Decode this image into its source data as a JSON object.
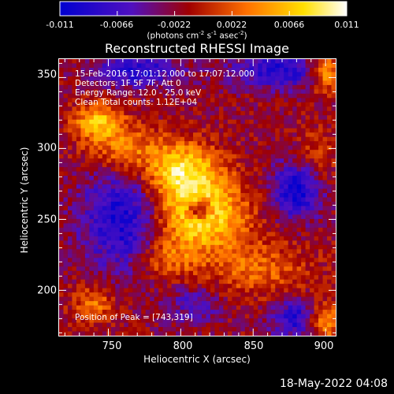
{
  "colorbar": {
    "ticks": [
      "-0.011",
      "-0.0066",
      "-0.0022",
      "0.0022",
      "0.0066",
      "0.011"
    ],
    "units_main": "(photons cm",
    "units_exp1": "-2",
    "units_mid": " s",
    "units_exp2": "-1",
    "units_tail": " asec",
    "units_exp3": "-2",
    "units_close": ")"
  },
  "annotations": {
    "time": "15-Feb-2016 17:01:12.000 to 17:07:12.000",
    "detectors": "Detectors: 1F 5F 7F, Att 0",
    "energy": "Energy Range: 12.0 - 25.0 keV",
    "clean": "Clean    Total counts: 1.12E+04",
    "peak": "Position of Peak = [743,319]"
  },
  "footer_date": "18-May-2022 04:08",
  "chart_data": {
    "type": "heatmap",
    "title": "Reconstructed RHESSI Image",
    "xlabel": "Heliocentric X (arcsec)",
    "ylabel": "Heliocentric Y (arcsec)",
    "xlim": [
      716,
      907
    ],
    "ylim": [
      168,
      363
    ],
    "x_ticks": [
      750,
      800,
      850,
      900
    ],
    "y_ticks": [
      200,
      250,
      300,
      350
    ],
    "value_range": [
      -0.011,
      0.011
    ],
    "colormap": "RHESSI blue-purple-red-yellow-white",
    "colormap_stops": [
      "#0000d0",
      "#5010c0",
      "#a00000",
      "#ff7000",
      "#ffe000",
      "#ffffff"
    ],
    "background": "#000000",
    "foreground": "#ffffff",
    "sources": [
      {
        "x": 813,
        "y": 254,
        "sx": 22,
        "sy": 18,
        "amp": 0.011
      },
      {
        "x": 800,
        "y": 285,
        "sx": 18,
        "sy": 14,
        "amp": 0.009
      },
      {
        "x": 760,
        "y": 300,
        "sx": 18,
        "sy": 12,
        "amp": 0.0055
      },
      {
        "x": 743,
        "y": 319,
        "sx": 12,
        "sy": 9,
        "amp": 0.008
      },
      {
        "x": 853,
        "y": 215,
        "sx": 26,
        "sy": 14,
        "amp": 0.0045
      },
      {
        "x": 790,
        "y": 222,
        "sx": 14,
        "sy": 10,
        "amp": 0.0045
      },
      {
        "x": 740,
        "y": 190,
        "sx": 10,
        "sy": 10,
        "amp": 0.005
      },
      {
        "x": 900,
        "y": 355,
        "sx": 8,
        "sy": 10,
        "amp": 0.009
      },
      {
        "x": 899,
        "y": 178,
        "sx": 8,
        "sy": 9,
        "amp": 0.008
      },
      {
        "x": 895,
        "y": 295,
        "sx": 10,
        "sy": 14,
        "amp": 0.003
      }
    ],
    "holes": [
      {
        "x": 813,
        "y": 257,
        "sx": 6,
        "sy": 5,
        "amp": -0.011
      }
    ],
    "negative_regions": [
      {
        "x": 760,
        "y": 250,
        "sx": 20,
        "sy": 25,
        "amp": -0.008
      },
      {
        "x": 770,
        "y": 355,
        "sx": 20,
        "sy": 8,
        "amp": -0.007
      },
      {
        "x": 870,
        "y": 355,
        "sx": 25,
        "sy": 9,
        "amp": -0.007
      },
      {
        "x": 880,
        "y": 270,
        "sx": 12,
        "sy": 14,
        "amp": -0.0085
      },
      {
        "x": 880,
        "y": 180,
        "sx": 12,
        "sy": 10,
        "amp": -0.007
      },
      {
        "x": 810,
        "y": 190,
        "sx": 14,
        "sy": 10,
        "amp": -0.004
      }
    ]
  }
}
